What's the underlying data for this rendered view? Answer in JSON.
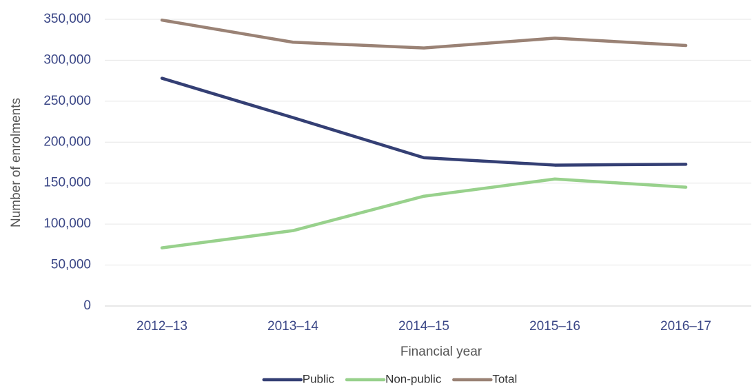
{
  "chart_data": {
    "type": "line",
    "x_label": "Financial year",
    "y_label": "Number of enrolments",
    "categories": [
      "2012–13",
      "2013–14",
      "2014–15",
      "2015–16",
      "2016–17"
    ],
    "series": [
      {
        "name": "Public",
        "color": "#343f74",
        "values": [
          278000,
          230000,
          181000,
          172000,
          173000
        ]
      },
      {
        "name": "Non-public",
        "color": "#98d18c",
        "values": [
          71000,
          92000,
          134000,
          155000,
          145000
        ]
      },
      {
        "name": "Total",
        "color": "#9a8275",
        "values": [
          349000,
          322000,
          315000,
          327000,
          318000
        ]
      }
    ],
    "ylim": [
      0,
      350000
    ],
    "yticks": [
      0,
      {
        "value": 50000,
        "label": "50,000"
      },
      {
        "value": 100000,
        "label": "100,000"
      },
      {
        "value": 150000,
        "label": "150,000"
      },
      {
        "value": 200000,
        "label": "200,000"
      },
      {
        "value": 250000,
        "label": "250,000"
      },
      {
        "value": 300000,
        "label": "300,000"
      },
      {
        "value": 350000,
        "label": "350,000"
      }
    ],
    "grid": true,
    "legend": "bottom"
  }
}
